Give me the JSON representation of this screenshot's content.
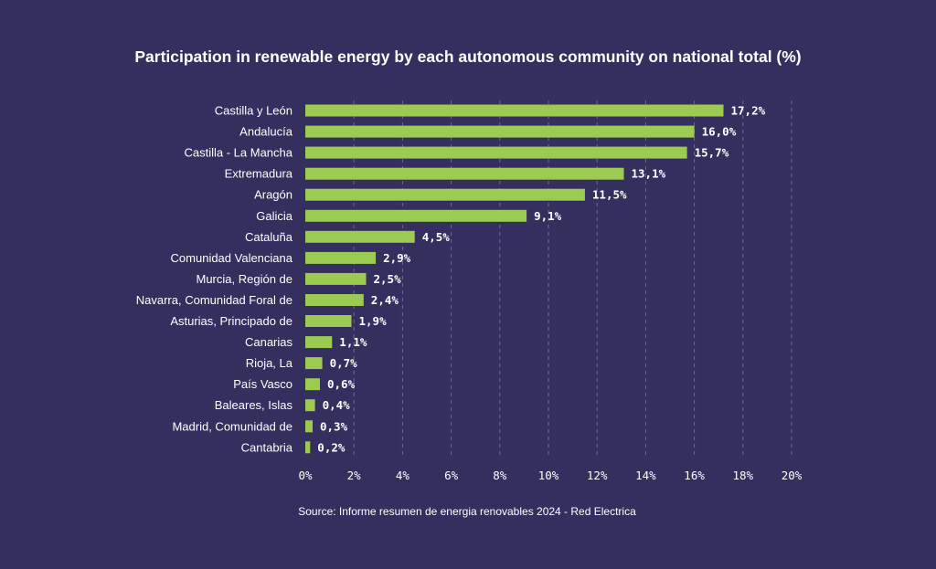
{
  "chart_data": {
    "type": "bar",
    "orientation": "horizontal",
    "title": "Participation in renewable energy by each autonomous community on national total (%)",
    "categories": [
      "Castilla y León",
      "Andalucía",
      "Castilla - La Mancha",
      "Extremadura",
      "Aragón",
      "Galicia",
      "Cataluña",
      "Comunidad Valenciana",
      "Murcia, Región de",
      "Navarra, Comunidad Foral de",
      "Asturias, Principado de",
      "Canarias",
      "Rioja, La",
      "País Vasco",
      "Baleares, Islas",
      "Madrid, Comunidad de",
      "Cantabria"
    ],
    "values": [
      17.2,
      16.0,
      15.7,
      13.1,
      11.5,
      9.1,
      4.5,
      2.9,
      2.5,
      2.4,
      1.9,
      1.1,
      0.7,
      0.6,
      0.4,
      0.3,
      0.2
    ],
    "value_labels": [
      "17,2%",
      "16,0%",
      "15,7%",
      "13,1%",
      "11,5%",
      "9,1%",
      "4,5%",
      "2,9%",
      "2,5%",
      "2,4%",
      "1,9%",
      "1,1%",
      "0,7%",
      "0,6%",
      "0,4%",
      "0,3%",
      "0,2%"
    ],
    "xlim": [
      0,
      20
    ],
    "xticks": [
      0,
      2,
      4,
      6,
      8,
      10,
      12,
      14,
      16,
      18,
      20
    ],
    "xtick_labels": [
      "0%",
      "2%",
      "4%",
      "6%",
      "8%",
      "10%",
      "12%",
      "14%",
      "16%",
      "18%",
      "20%"
    ],
    "xlabel": "",
    "ylabel": "",
    "grid": "vertical dashed",
    "legend": "none",
    "source": "Source: Informe resumen de energia renovables 2024 - Red Electrica",
    "colors": {
      "background": "#342f5e",
      "bar": "#9bcb53",
      "text": "#ffffff",
      "grid": "#6f6a93"
    }
  }
}
